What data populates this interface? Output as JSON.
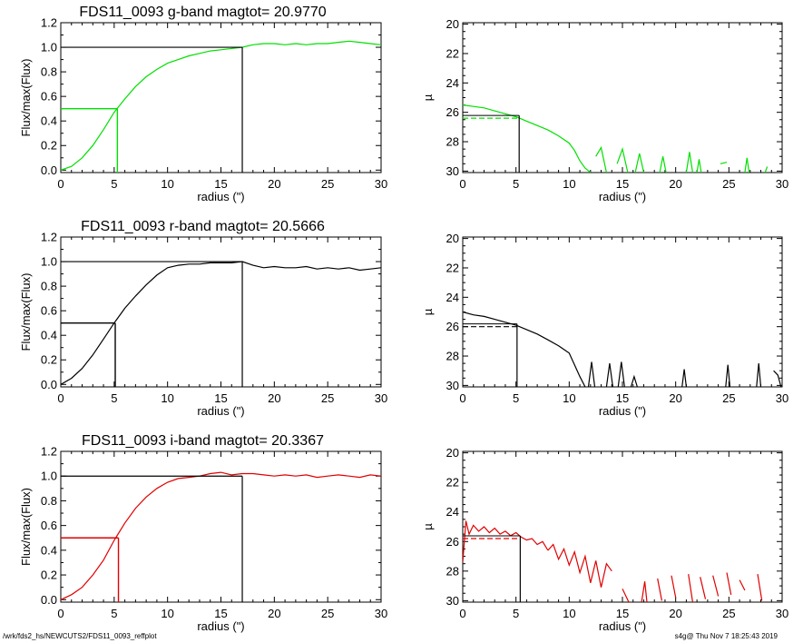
{
  "footer": {
    "path": "/wrk/fds2_hs/NEWCUTS2/FDS11_0093_reffplot",
    "stamp": "s4g@  Thu Nov  7 18:25:43 2019"
  },
  "colors": {
    "g": "#00e000",
    "r": "#000000",
    "i": "#e00000",
    "axis": "#000000"
  },
  "chart_data": [
    {
      "type": "line",
      "band": "g",
      "color": "#00e000",
      "title": "FDS11_0093 g-band  magtot=     20.9770",
      "xlabel": "radius (\")",
      "ylabel": "Flux/max(Flux)",
      "xlim": [
        0,
        30
      ],
      "ylim": [
        -0.02,
        1.2
      ],
      "xticks": [
        0,
        5,
        10,
        15,
        20,
        25,
        30
      ],
      "yticks": [
        0.0,
        0.2,
        0.4,
        0.6,
        0.8,
        1.0,
        1.2
      ],
      "ytick_labels": [
        "0.0",
        "0.2",
        "0.4",
        "0.6",
        "0.8",
        "1.0",
        "1.2"
      ],
      "x": [
        0,
        1,
        2,
        3,
        4,
        5,
        6,
        7,
        8,
        9,
        10,
        11,
        12,
        13,
        14,
        15,
        16,
        17,
        18,
        19,
        20,
        21,
        22,
        23,
        24,
        25,
        26,
        27,
        28,
        29,
        30
      ],
      "y": [
        0.0,
        0.03,
        0.1,
        0.2,
        0.33,
        0.47,
        0.58,
        0.68,
        0.76,
        0.82,
        0.87,
        0.9,
        0.93,
        0.95,
        0.97,
        0.98,
        0.99,
        1.0,
        1.02,
        1.03,
        1.03,
        1.02,
        1.03,
        1.02,
        1.03,
        1.03,
        1.04,
        1.05,
        1.04,
        1.03,
        1.02
      ],
      "half_light": {
        "radius": 5.3,
        "level": 0.5
      },
      "total": {
        "radius": 17.0,
        "level": 1.0
      }
    },
    {
      "type": "line",
      "band": "g",
      "color": "#00e000",
      "title": "",
      "xlabel": "radius (\")",
      "ylabel": "µ",
      "xlim": [
        0,
        30
      ],
      "ylim": [
        30.1,
        19.9
      ],
      "y_inverted": true,
      "xticks": [
        0,
        5,
        10,
        15,
        20,
        25,
        30
      ],
      "yticks": [
        20,
        22,
        24,
        26,
        28,
        30
      ],
      "segments": [
        {
          "x": [
            0,
            1,
            2,
            3,
            4,
            5,
            6,
            7,
            8,
            9,
            10,
            10.5,
            11,
            11.5,
            12
          ],
          "y": [
            25.5,
            25.6,
            25.7,
            25.9,
            26.1,
            26.3,
            26.6,
            26.9,
            27.2,
            27.6,
            28.1,
            28.6,
            29.3,
            29.8,
            30.1
          ]
        },
        {
          "x": [
            12.5,
            13,
            13.5
          ],
          "y": [
            29.0,
            28.4,
            30.1
          ]
        },
        {
          "x": [
            14.5,
            15,
            15.5
          ],
          "y": [
            29.5,
            28.5,
            30.1
          ]
        },
        {
          "x": [
            16.2,
            16.6,
            17
          ],
          "y": [
            30.1,
            28.8,
            30.1
          ]
        },
        {
          "x": [
            18.5,
            18.8,
            19.1
          ],
          "y": [
            30.1,
            29.0,
            30.1
          ]
        },
        {
          "x": [
            21,
            21.3,
            21.6
          ],
          "y": [
            30.1,
            28.7,
            30.1
          ]
        },
        {
          "x": [
            22,
            22.2,
            22.4
          ],
          "y": [
            30.1,
            29.2,
            30.1
          ]
        },
        {
          "x": [
            24.2,
            24.8
          ],
          "y": [
            29.5,
            29.4
          ]
        },
        {
          "x": [
            26.5,
            26.7,
            26.9
          ],
          "y": [
            30.1,
            29.1,
            30.1
          ]
        },
        {
          "x": [
            28.4,
            28.6
          ],
          "y": [
            30.1,
            29.7
          ]
        }
      ],
      "reference": {
        "radius": 5.3,
        "mu": 26.4
      }
    },
    {
      "type": "line",
      "band": "r",
      "color": "#000000",
      "title": "FDS11_0093 r-band  magtot=     20.5666",
      "xlabel": "radius (\")",
      "ylabel": "Flux/max(Flux)",
      "xlim": [
        0,
        30
      ],
      "ylim": [
        -0.02,
        1.2
      ],
      "xticks": [
        0,
        5,
        10,
        15,
        20,
        25,
        30
      ],
      "yticks": [
        0.0,
        0.2,
        0.4,
        0.6,
        0.8,
        1.0,
        1.2
      ],
      "ytick_labels": [
        "0.0",
        "0.2",
        "0.4",
        "0.6",
        "0.8",
        "1.0",
        "1.2"
      ],
      "x": [
        0,
        1,
        2,
        3,
        4,
        5,
        6,
        7,
        8,
        9,
        10,
        11,
        12,
        13,
        14,
        15,
        16,
        17,
        18,
        19,
        20,
        21,
        22,
        23,
        24,
        25,
        26,
        27,
        28,
        29,
        30
      ],
      "y": [
        0.0,
        0.05,
        0.13,
        0.24,
        0.37,
        0.5,
        0.62,
        0.72,
        0.81,
        0.89,
        0.95,
        0.97,
        0.98,
        0.98,
        0.99,
        0.99,
        0.99,
        1.0,
        0.97,
        0.95,
        0.96,
        0.95,
        0.95,
        0.96,
        0.94,
        0.95,
        0.94,
        0.95,
        0.93,
        0.94,
        0.95
      ],
      "half_light": {
        "radius": 5.1,
        "level": 0.5
      },
      "total": {
        "radius": 17.0,
        "level": 1.0
      }
    },
    {
      "type": "line",
      "band": "r",
      "color": "#000000",
      "title": "",
      "xlabel": "radius (\")",
      "ylabel": "µ",
      "xlim": [
        0,
        30
      ],
      "ylim": [
        30.1,
        19.9
      ],
      "y_inverted": true,
      "xticks": [
        0,
        5,
        10,
        15,
        20,
        25,
        30
      ],
      "yticks": [
        20,
        22,
        24,
        26,
        28,
        30
      ],
      "segments": [
        {
          "x": [
            0,
            1,
            2,
            3,
            4,
            5,
            6,
            7,
            8,
            9,
            10,
            10.5,
            11,
            11.5
          ],
          "y": [
            25.0,
            25.2,
            25.3,
            25.5,
            25.7,
            25.9,
            26.2,
            26.5,
            26.9,
            27.3,
            27.8,
            28.6,
            29.4,
            30.1
          ]
        },
        {
          "x": [
            11.8,
            12.1,
            12.4
          ],
          "y": [
            30.1,
            28.4,
            30.1
          ]
        },
        {
          "x": [
            13.5,
            13.8,
            14.1
          ],
          "y": [
            30.1,
            28.5,
            30.1
          ]
        },
        {
          "x": [
            14.6,
            14.9,
            15.2
          ],
          "y": [
            30.1,
            28.4,
            30.1
          ]
        },
        {
          "x": [
            15.8,
            16.1,
            16.4
          ],
          "y": [
            30.1,
            29.4,
            30.1
          ]
        },
        {
          "x": [
            20.6,
            20.8,
            21.0
          ],
          "y": [
            30.1,
            28.9,
            30.1
          ]
        },
        {
          "x": [
            24.7,
            24.9,
            25.1
          ],
          "y": [
            30.1,
            28.6,
            30.1
          ]
        },
        {
          "x": [
            27.6,
            27.8,
            28.0
          ],
          "y": [
            30.1,
            28.5,
            30.1
          ]
        },
        {
          "x": [
            29.2,
            29.6,
            29.9
          ],
          "y": [
            29.0,
            29.3,
            30.1
          ]
        }
      ],
      "reference": {
        "radius": 5.1,
        "mu": 26.0
      }
    },
    {
      "type": "line",
      "band": "i",
      "color": "#e00000",
      "title": "FDS11_0093 i-band  magtot=     20.3367",
      "xlabel": "radius (\")",
      "ylabel": "Flux/max(Flux)",
      "xlim": [
        0,
        30
      ],
      "ylim": [
        -0.02,
        1.2
      ],
      "xticks": [
        0,
        5,
        10,
        15,
        20,
        25,
        30
      ],
      "yticks": [
        0.0,
        0.2,
        0.4,
        0.6,
        0.8,
        1.0,
        1.2
      ],
      "ytick_labels": [
        "0.0",
        "0.2",
        "0.4",
        "0.6",
        "0.8",
        "1.0",
        "1.2"
      ],
      "x": [
        0,
        1,
        2,
        3,
        4,
        5,
        6,
        7,
        8,
        9,
        10,
        11,
        12,
        13,
        14,
        15,
        16,
        17,
        18,
        19,
        20,
        21,
        22,
        23,
        24,
        25,
        26,
        27,
        28,
        29,
        30
      ],
      "y": [
        0.0,
        0.04,
        0.1,
        0.2,
        0.32,
        0.48,
        0.62,
        0.74,
        0.83,
        0.9,
        0.95,
        0.98,
        0.99,
        1.0,
        1.02,
        1.03,
        1.01,
        1.02,
        1.02,
        1.01,
        1.0,
        1.01,
        1.0,
        1.01,
        0.99,
        1.0,
        1.01,
        1.0,
        0.99,
        1.01,
        1.0
      ],
      "half_light": {
        "radius": 5.4,
        "level": 0.5
      },
      "total": {
        "radius": 17.0,
        "level": 1.0
      }
    },
    {
      "type": "line",
      "band": "i",
      "color": "#e00000",
      "title": "",
      "xlabel": "radius (\")",
      "ylabel": "µ",
      "xlim": [
        0,
        30
      ],
      "ylim": [
        30.1,
        19.9
      ],
      "y_inverted": true,
      "xticks": [
        0,
        5,
        10,
        15,
        20,
        25,
        30
      ],
      "yticks": [
        20,
        22,
        24,
        26,
        28,
        30
      ],
      "segments": [
        {
          "x": [
            0,
            0.3,
            0.6,
            1,
            1.5,
            2,
            2.5,
            3,
            3.5,
            4,
            4.5,
            5,
            5.5,
            6,
            6.5,
            7,
            7.5,
            8
          ],
          "y": [
            27.4,
            24.6,
            25.5,
            24.9,
            25.3,
            25.0,
            25.4,
            25.1,
            25.5,
            25.3,
            25.6,
            25.4,
            25.7,
            25.9,
            25.8,
            26.2,
            26.0,
            26.6
          ]
        },
        {
          "x": [
            8,
            8.5,
            9,
            9.5,
            10,
            10.5,
            11,
            11.5,
            12,
            12.5,
            13,
            13.5,
            14
          ],
          "y": [
            26.6,
            26.2,
            27.2,
            26.5,
            27.6,
            26.7,
            28.1,
            27.0,
            28.8,
            27.3,
            29.1,
            27.5,
            28.0
          ]
        },
        {
          "x": [
            15.0,
            15.6
          ],
          "y": [
            29.2,
            30.1
          ]
        },
        {
          "x": [
            16.8,
            17.1,
            17.3
          ],
          "y": [
            30.1,
            28.7,
            30.1
          ]
        },
        {
          "x": [
            18.3,
            18.7
          ],
          "y": [
            28.5,
            30.0
          ]
        },
        {
          "x": [
            19.6,
            20.0
          ],
          "y": [
            28.3,
            29.8
          ]
        },
        {
          "x": [
            21.2,
            21.6
          ],
          "y": [
            28.2,
            30.1
          ]
        },
        {
          "x": [
            22.3,
            22.8
          ],
          "y": [
            28.4,
            29.9
          ]
        },
        {
          "x": [
            23.5,
            24.0
          ],
          "y": [
            28.3,
            29.7
          ]
        },
        {
          "x": [
            24.8,
            25.2
          ],
          "y": [
            28.1,
            29.6
          ]
        },
        {
          "x": [
            26.0,
            26.5
          ],
          "y": [
            28.6,
            29.3
          ]
        },
        {
          "x": [
            27.7,
            28.1
          ],
          "y": [
            28.2,
            30.0
          ]
        }
      ],
      "reference": {
        "radius": 5.4,
        "mu": 25.8
      }
    }
  ]
}
